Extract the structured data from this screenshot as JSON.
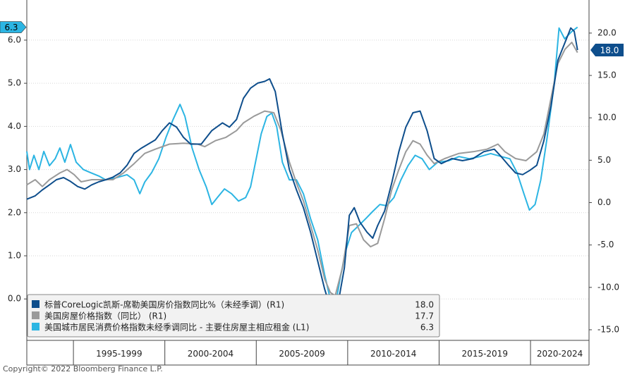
{
  "chart_data": {
    "type": "line",
    "copyright": "Copyright© 2022 Bloomberg Finance L.P.",
    "xlim": [
      1992.45,
      2023.2
    ],
    "xticks": [
      1995,
      2000,
      2005,
      2010,
      2015,
      2020
    ],
    "x_labels": [
      "1995-1999",
      "2000-2004",
      "2005-2009",
      "2010-2014",
      "2015-2019",
      "2020-2024"
    ],
    "ylim": [
      -0.96,
      6.93
    ],
    "yticks": [
      {
        "value": 0,
        "label": "0.0"
      },
      {
        "value": 1,
        "label": "1.0"
      },
      {
        "value": 2,
        "label": "2.0"
      },
      {
        "value": 3,
        "label": "3.0"
      },
      {
        "value": 4,
        "label": "4.0"
      },
      {
        "value": 5,
        "label": "5.0"
      },
      {
        "value": 6,
        "label": "6.0"
      }
    ],
    "y2lim": [
      -16.25,
      23.9
    ],
    "y2ticks": [
      {
        "value": -15,
        "label": "-15.0"
      },
      {
        "value": -10,
        "label": "-10.0"
      },
      {
        "value": -5,
        "label": "-5.0"
      },
      {
        "value": 0,
        "label": "0.0"
      },
      {
        "value": 5,
        "label": "5.0"
      },
      {
        "value": 10,
        "label": "10.0"
      },
      {
        "value": 15,
        "label": "15.0"
      },
      {
        "value": 20,
        "label": "20.0"
      }
    ],
    "grid": true,
    "legend": "lower left",
    "series": [
      {
        "name": "标普CoreLogic凯斯-席勒美国房价指数同比%（未经季调）(R1)",
        "color": "#0e4e8c",
        "axis": "y2",
        "legend_value": "18.0",
        "x": [
          1992.45,
          1992.91,
          1993.3,
          1993.69,
          1994.07,
          1994.46,
          1994.84,
          1995.23,
          1995.62,
          1996.0,
          1996.39,
          1996.77,
          1997.16,
          1997.55,
          1997.93,
          1998.32,
          1998.7,
          1999.09,
          1999.48,
          1999.86,
          2000.25,
          2000.64,
          2001.02,
          2001.41,
          2001.99,
          2002.57,
          2003.15,
          2003.53,
          2003.92,
          2004.3,
          2004.69,
          2005.08,
          2005.46,
          2005.73,
          2006.04,
          2006.43,
          2006.81,
          2007.2,
          2007.58,
          2007.97,
          2008.36,
          2008.74,
          2009.05,
          2009.44,
          2009.82,
          2010.09,
          2010.36,
          2010.67,
          2011.06,
          2011.37,
          2011.64,
          2012.02,
          2012.41,
          2012.8,
          2013.18,
          2013.57,
          2013.96,
          2014.34,
          2014.73,
          2015.12,
          2015.7,
          2016.28,
          2016.86,
          2017.44,
          2018.02,
          2018.41,
          2018.8,
          2019.18,
          2019.57,
          2019.96,
          2020.34,
          2020.73,
          2021.12,
          2021.5,
          2021.89,
          2022.2,
          2022.39,
          2022.57
        ],
        "values": [
          0.4,
          0.8,
          1.5,
          2.1,
          2.7,
          2.95,
          2.5,
          1.9,
          1.6,
          2.1,
          2.45,
          2.7,
          3.0,
          3.5,
          4.4,
          5.8,
          6.4,
          6.9,
          7.4,
          8.5,
          9.4,
          8.9,
          7.7,
          6.9,
          6.9,
          8.5,
          9.4,
          8.9,
          9.8,
          12.3,
          13.5,
          14.1,
          14.3,
          14.6,
          13.1,
          8.1,
          3.9,
          1.5,
          -0.6,
          -3.5,
          -6.9,
          -10.2,
          -12.4,
          -12.3,
          -7.7,
          -1.5,
          -0.6,
          -2.3,
          -3.5,
          -4.2,
          -2.7,
          -1.0,
          2.3,
          6.0,
          8.9,
          10.6,
          10.8,
          8.5,
          5.2,
          4.6,
          5.2,
          4.95,
          5.2,
          6.0,
          6.3,
          5.4,
          4.4,
          3.5,
          3.3,
          3.8,
          4.4,
          7.3,
          11.4,
          16.8,
          18.9,
          20.6,
          20.2,
          18.0
        ]
      },
      {
        "name": "美国房屋价格指数（同比） (R1)",
        "color": "#9a9a9a",
        "axis": "y2",
        "legend_value": "17.7",
        "x": [
          1992.45,
          1992.91,
          1993.3,
          1993.69,
          1994.26,
          1994.65,
          1995.04,
          1995.42,
          1996.0,
          1996.58,
          1997.16,
          1997.74,
          1998.32,
          1998.9,
          1999.48,
          2000.25,
          2001.02,
          2001.8,
          2002.18,
          2002.76,
          2003.34,
          2003.92,
          2004.3,
          2004.88,
          2005.46,
          2005.96,
          2006.35,
          2006.81,
          2007.2,
          2007.58,
          2007.97,
          2008.36,
          2008.74,
          2009.05,
          2009.32,
          2009.71,
          2010.09,
          2010.48,
          2010.87,
          2011.25,
          2011.64,
          2012.02,
          2012.41,
          2012.8,
          2013.18,
          2013.57,
          2013.96,
          2014.34,
          2014.73,
          2015.31,
          2016.09,
          2016.86,
          2017.63,
          2018.22,
          2018.6,
          2019.18,
          2019.75,
          2020.34,
          2020.73,
          2021.12,
          2021.5,
          2021.89,
          2022.26,
          2022.57
        ],
        "values": [
          2.1,
          2.7,
          1.9,
          2.7,
          3.5,
          3.9,
          3.3,
          2.45,
          2.7,
          2.7,
          2.7,
          3.5,
          4.6,
          5.8,
          6.3,
          6.9,
          7.0,
          6.9,
          6.6,
          7.3,
          7.7,
          8.5,
          9.4,
          10.2,
          10.8,
          10.6,
          8.5,
          4.8,
          2.3,
          0.2,
          -2.7,
          -5.6,
          -9.0,
          -10.6,
          -11.0,
          -7.7,
          -2.7,
          -2.5,
          -4.4,
          -5.2,
          -4.8,
          -1.9,
          1.5,
          3.9,
          6.0,
          7.3,
          6.9,
          5.6,
          4.6,
          5.2,
          5.8,
          6.0,
          6.3,
          6.9,
          6.0,
          5.2,
          4.95,
          6.0,
          8.1,
          12.3,
          16.4,
          18.1,
          18.9,
          17.7
        ]
      },
      {
        "name": "美国城市居民消费价格指数未经季调同比 - 主要住房屋主相应租金 (L1)",
        "color": "#2cb5e3",
        "axis": "y",
        "legend_value": "6.3",
        "x": [
          1992.45,
          1992.6,
          1992.84,
          1993.11,
          1993.38,
          1993.69,
          1994.0,
          1994.26,
          1994.53,
          1994.84,
          1995.15,
          1995.54,
          1995.93,
          1996.39,
          1996.77,
          1997.35,
          1997.93,
          1998.32,
          1998.63,
          1998.9,
          1999.28,
          1999.67,
          2000.06,
          2000.44,
          2000.83,
          2001.1,
          2001.49,
          2001.87,
          2002.26,
          2002.57,
          2002.87,
          2003.26,
          2003.65,
          2004.03,
          2004.42,
          2004.69,
          2004.96,
          2005.27,
          2005.58,
          2005.85,
          2006.12,
          2006.43,
          2006.81,
          2007.2,
          2007.58,
          2007.97,
          2008.36,
          2008.74,
          2009.05,
          2009.32,
          2009.59,
          2009.9,
          2010.21,
          2010.6,
          2010.98,
          2011.37,
          2011.76,
          2012.14,
          2012.53,
          2012.91,
          2013.3,
          2013.69,
          2014.07,
          2014.46,
          2014.92,
          2015.5,
          2016.09,
          2016.66,
          2017.24,
          2017.82,
          2018.41,
          2018.87,
          2019.26,
          2019.64,
          2019.94,
          2020.25,
          2020.56,
          2020.91,
          2021.29,
          2021.56,
          2021.87,
          2022.26,
          2022.57
        ],
        "values": [
          3.42,
          3.0,
          3.33,
          3.0,
          3.42,
          3.09,
          3.25,
          3.5,
          3.17,
          3.58,
          3.17,
          3.0,
          2.93,
          2.85,
          2.76,
          2.81,
          2.88,
          2.76,
          2.44,
          2.71,
          2.93,
          3.25,
          3.74,
          4.15,
          4.51,
          4.23,
          3.5,
          3.0,
          2.6,
          2.19,
          2.35,
          2.55,
          2.44,
          2.27,
          2.35,
          2.6,
          3.17,
          3.83,
          4.23,
          4.31,
          3.99,
          3.17,
          2.76,
          2.76,
          2.44,
          1.86,
          1.37,
          0.56,
          -0.01,
          -0.18,
          0.48,
          1.13,
          1.54,
          1.7,
          1.86,
          2.03,
          2.19,
          2.16,
          2.35,
          2.76,
          3.09,
          3.33,
          3.25,
          3.0,
          3.17,
          3.2,
          3.3,
          3.25,
          3.3,
          3.37,
          3.3,
          3.25,
          2.93,
          2.44,
          2.06,
          2.19,
          2.76,
          3.74,
          4.97,
          6.28,
          6.03,
          6.2,
          6.3
        ]
      }
    ]
  }
}
